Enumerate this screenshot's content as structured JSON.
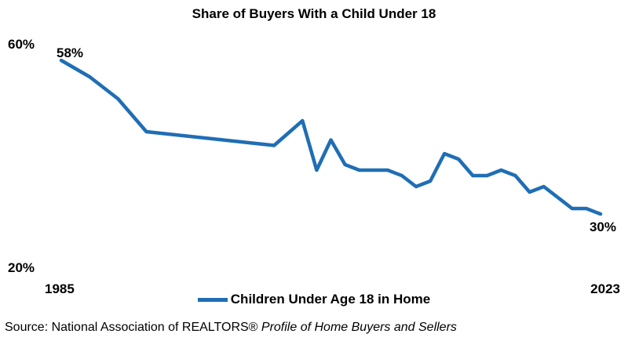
{
  "chart_data": {
    "type": "line",
    "title": "Share of Buyers With a Child Under 18",
    "xlabel": "",
    "ylabel": "",
    "y_ticks": [
      "60%",
      "20%"
    ],
    "x_ticks": [
      "1985",
      "2023"
    ],
    "ylim": [
      20,
      60
    ],
    "xlim": [
      1985,
      2023
    ],
    "grid": false,
    "legend_position": "bottom",
    "series": [
      {
        "name": "Children Under Age 18 in Home",
        "color": "#1f6eb5",
        "x": [
          1985,
          1987,
          1989,
          1991,
          2000,
          2002,
          2003,
          2004,
          2005,
          2006,
          2007,
          2008,
          2009,
          2010,
          2011,
          2012,
          2013,
          2014,
          2015,
          2016,
          2017,
          2018,
          2019,
          2020,
          2021,
          2022,
          2023
        ],
        "values": [
          58,
          55,
          51,
          45,
          42.5,
          47,
          38,
          43.5,
          39,
          38,
          38,
          38,
          37,
          35,
          36,
          41,
          40,
          37,
          37,
          38,
          37,
          34,
          35,
          33,
          31,
          31,
          30
        ]
      }
    ],
    "data_labels": [
      {
        "x": 1985,
        "text": "58%"
      },
      {
        "x": 2023,
        "text": "30%"
      }
    ]
  },
  "legend": {
    "label": "Children Under Age 18 in Home"
  },
  "source": {
    "prefix": "Source: National Association of REALTORS® ",
    "italic": "Profile of Home Buyers and Sellers"
  }
}
